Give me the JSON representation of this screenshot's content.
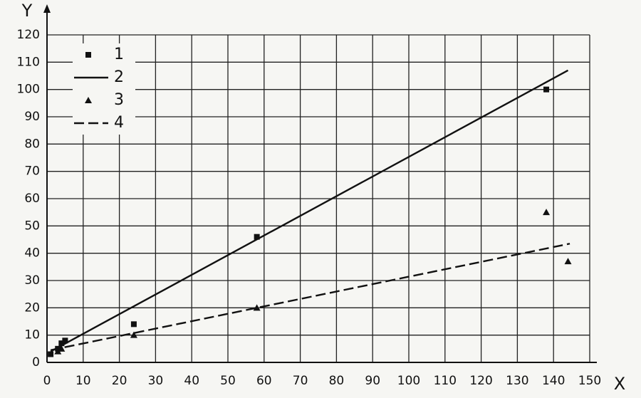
{
  "chart_data": {
    "type": "scatter",
    "x_label": "X",
    "y_label": "Y",
    "xlim": [
      0,
      150
    ],
    "xticks": [
      0,
      10,
      20,
      30,
      40,
      50,
      60,
      70,
      80,
      90,
      100,
      110,
      120,
      130,
      140,
      150
    ],
    "ylim": [
      0,
      120
    ],
    "yticks": [
      0,
      10,
      20,
      30,
      40,
      50,
      60,
      70,
      80,
      90,
      100,
      110,
      120
    ],
    "grid": true,
    "legend": "upper left",
    "series": [
      {
        "name": "1",
        "color": "#111111",
        "marker": "square",
        "x": [
          1,
          3,
          4,
          5,
          24,
          58,
          138
        ],
        "values": [
          3,
          5,
          7,
          8,
          14,
          46,
          100
        ]
      },
      {
        "name": "2",
        "color": "#111111",
        "line": "solid",
        "x": [
          1,
          144
        ],
        "values": [
          4,
          107
        ]
      },
      {
        "name": "3",
        "color": "#111111",
        "marker": "triangle",
        "x": [
          3,
          4,
          24,
          58,
          138,
          144
        ],
        "values": [
          4,
          5,
          10,
          20,
          55,
          37
        ]
      },
      {
        "name": "4",
        "color": "#111111",
        "line": "dashed",
        "x": [
          1,
          144.5
        ],
        "values": [
          4.5,
          43.5
        ]
      }
    ]
  }
}
